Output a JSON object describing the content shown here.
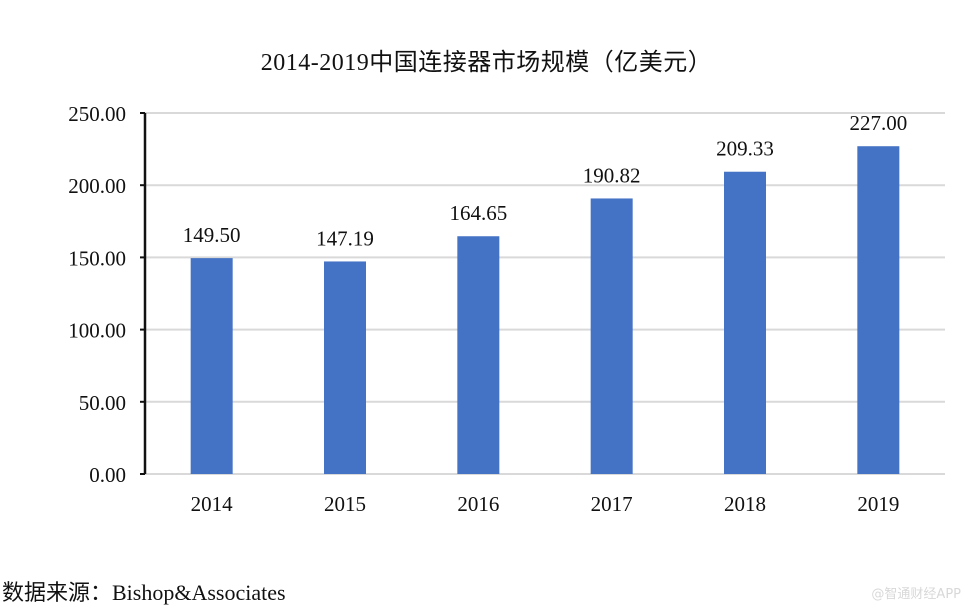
{
  "chart_data": {
    "type": "bar",
    "title": "2014-2019中国连接器市场规模（亿美元）",
    "categories": [
      "2014",
      "2015",
      "2016",
      "2017",
      "2018",
      "2019"
    ],
    "values": [
      149.5,
      147.19,
      164.65,
      190.82,
      209.33,
      227.0
    ],
    "value_labels": [
      "149.50",
      "147.19",
      "164.65",
      "190.82",
      "209.33",
      "227.00"
    ],
    "xlabel": "",
    "ylabel": "",
    "ylim": [
      0,
      250
    ],
    "yticks": [
      "0.00",
      "50.00",
      "100.00",
      "150.00",
      "200.00",
      "250.00"
    ],
    "grid": true,
    "legend": null,
    "bar_color": "#4472C4",
    "grid_color": "#d9d9d9"
  },
  "footer": {
    "source": "数据来源：Bishop&Associates",
    "watermark": "@智通财经APP"
  }
}
